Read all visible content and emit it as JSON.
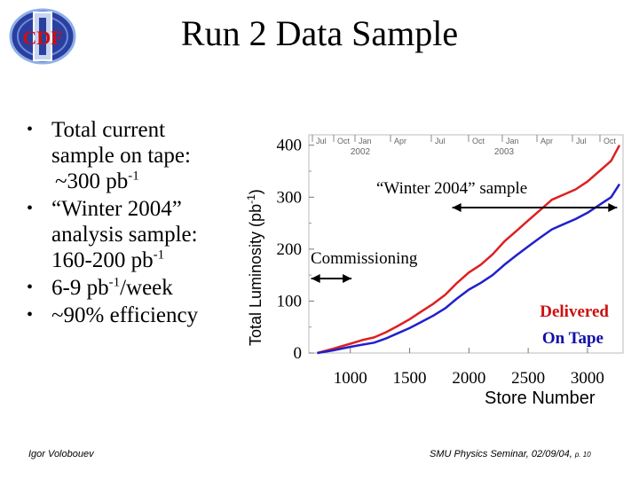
{
  "header": {
    "title": "Run 2 Data Sample",
    "logo_text": "CDF"
  },
  "bullets": [
    {
      "parts": [
        "Total current",
        "sample on tape:",
        "~300 pb"
      ],
      "sup": "-1"
    },
    {
      "parts": [
        "“Winter 2004”",
        "analysis sample:",
        "160-200 pb"
      ],
      "sup": "-1"
    },
    {
      "prefix": "6-9 pb",
      "sup": "-1",
      "suffix": "/week"
    },
    {
      "text": "~90% efficiency"
    }
  ],
  "footer": {
    "author": "Igor Volobouev",
    "event": "SMU Physics Seminar, 02/09/04, ",
    "page_prefix": "p. ",
    "page": "10"
  },
  "chart_data": {
    "type": "line",
    "ylabel_main": "Total Luminosity (pb",
    "ylabel_sup": "-1",
    "ylabel_close": ")",
    "xlabel": "Store Number",
    "xlim": [
      650,
      3300
    ],
    "ylim": [
      0,
      420
    ],
    "x_ticks": [
      "1000",
      "1500",
      "2000",
      "2500",
      "3000"
    ],
    "y_ticks": [
      "0",
      "100",
      "200",
      "300",
      "400"
    ],
    "date_ticks": [
      "Jul",
      "Oct",
      "Jan",
      "Apr",
      "Jul",
      "Oct",
      "Jan",
      "Apr",
      "Jul",
      "Oct"
    ],
    "year_labels": [
      "2002",
      "2003"
    ],
    "series": [
      {
        "name": "Delivered",
        "color": "#dd2020",
        "x": [
          720,
          850,
          1000,
          1100,
          1200,
          1300,
          1400,
          1500,
          1600,
          1700,
          1800,
          1900,
          2000,
          2100,
          2200,
          2300,
          2400,
          2500,
          2600,
          2700,
          2800,
          2900,
          3000,
          3100,
          3200,
          3270
        ],
        "y": [
          0,
          8,
          18,
          25,
          30,
          40,
          52,
          65,
          80,
          95,
          112,
          135,
          155,
          170,
          190,
          215,
          235,
          255,
          275,
          295,
          305,
          315,
          330,
          350,
          370,
          400
        ]
      },
      {
        "name": "On Tape",
        "color": "#2020cc",
        "x": [
          720,
          850,
          1000,
          1100,
          1200,
          1300,
          1400,
          1500,
          1600,
          1700,
          1800,
          1900,
          2000,
          2100,
          2200,
          2300,
          2400,
          2500,
          2600,
          2700,
          2800,
          2900,
          3000,
          3100,
          3200,
          3270
        ],
        "y": [
          0,
          5,
          12,
          16,
          20,
          28,
          38,
          48,
          60,
          72,
          86,
          105,
          122,
          135,
          150,
          170,
          188,
          205,
          222,
          238,
          248,
          258,
          270,
          285,
          300,
          325
        ]
      }
    ],
    "annotations": [
      {
        "text": "“Winter 2004” sample",
        "color": "#000000"
      },
      {
        "text": "Commissioning",
        "color": "#000000"
      },
      {
        "text": "Delivered",
        "color": "#cc1010"
      },
      {
        "text": "On Tape",
        "color": "#1010aa"
      }
    ]
  }
}
